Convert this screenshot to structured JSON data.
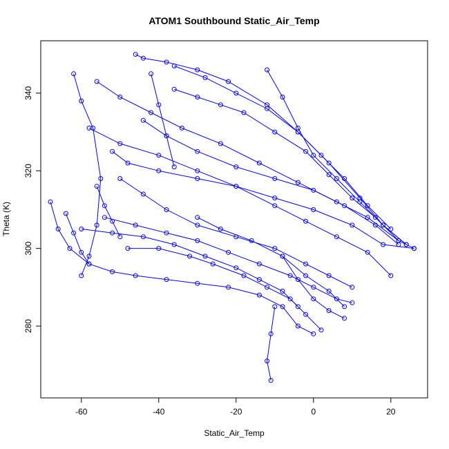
{
  "chart_data": {
    "type": "line",
    "title": "ATOM1 Southbound Static_Air_Temp",
    "xlabel": "Static_Air_Temp",
    "ylabel": "Theta (K)",
    "xlim": [
      -70.5,
      29.5
    ],
    "ylim": [
      261.5,
      353.5
    ],
    "x_ticks": [
      -60,
      -40,
      -20,
      0,
      20
    ],
    "y_ticks": [
      280,
      300,
      320,
      340
    ],
    "grid": false,
    "legend": "none",
    "color": "#0000ff",
    "markers": "open-circle",
    "series": [
      {
        "points": [
          [
            -46,
            350
          ],
          [
            -44,
            349
          ],
          [
            -38,
            348
          ],
          [
            -30,
            346
          ],
          [
            -22,
            343
          ],
          [
            -12,
            337
          ],
          [
            -4,
            330
          ],
          [
            4,
            322
          ],
          [
            12,
            313
          ],
          [
            18,
            306
          ],
          [
            24,
            301
          ]
        ]
      },
      {
        "points": [
          [
            -62,
            345
          ],
          [
            -60,
            338
          ],
          [
            -57,
            331
          ],
          [
            -55,
            318
          ],
          [
            -56,
            306
          ],
          [
            -58,
            298
          ],
          [
            -60,
            293
          ]
        ]
      },
      {
        "points": [
          [
            -56,
            343
          ],
          [
            -50,
            339
          ],
          [
            -42,
            335
          ],
          [
            -34,
            331
          ],
          [
            -24,
            327
          ],
          [
            -14,
            322
          ],
          [
            -4,
            317
          ],
          [
            6,
            312
          ],
          [
            14,
            308
          ],
          [
            22,
            302
          ],
          [
            26,
            300
          ]
        ]
      },
      {
        "points": [
          [
            -54,
            308
          ],
          [
            -46,
            306
          ],
          [
            -38,
            304
          ],
          [
            -30,
            302
          ],
          [
            -22,
            299
          ],
          [
            -14,
            296
          ],
          [
            -6,
            293
          ],
          [
            0,
            290
          ],
          [
            6,
            287
          ],
          [
            10,
            286
          ]
        ]
      },
      {
        "points": [
          [
            -68,
            312
          ],
          [
            -66,
            305
          ],
          [
            -63,
            300
          ],
          [
            -58,
            296
          ],
          [
            -52,
            294
          ],
          [
            -46,
            293
          ],
          [
            -38,
            292
          ],
          [
            -30,
            291
          ],
          [
            -22,
            290
          ],
          [
            -14,
            288
          ],
          [
            -8,
            285
          ],
          [
            -4,
            280
          ],
          [
            0,
            278
          ]
        ]
      },
      {
        "points": [
          [
            -10,
            285
          ],
          [
            -11,
            278
          ],
          [
            -12,
            271
          ],
          [
            -11,
            266
          ]
        ]
      },
      {
        "points": [
          [
            -52,
            325
          ],
          [
            -48,
            322
          ],
          [
            -40,
            320
          ],
          [
            -30,
            318
          ],
          [
            -20,
            316
          ],
          [
            -10,
            313
          ],
          [
            0,
            310
          ],
          [
            10,
            306
          ],
          [
            18,
            301
          ],
          [
            26,
            300
          ]
        ]
      },
      {
        "points": [
          [
            -58,
            331
          ],
          [
            -50,
            327
          ],
          [
            -40,
            324
          ],
          [
            -30,
            320
          ],
          [
            -20,
            316
          ],
          [
            -10,
            311
          ],
          [
            -2,
            307
          ],
          [
            6,
            303
          ],
          [
            14,
            299
          ],
          [
            20,
            293
          ]
        ]
      },
      {
        "points": [
          [
            -50,
            318
          ],
          [
            -44,
            314
          ],
          [
            -38,
            310
          ],
          [
            -30,
            306
          ],
          [
            -20,
            303
          ],
          [
            -10,
            300
          ],
          [
            -2,
            296
          ],
          [
            4,
            293
          ],
          [
            10,
            290
          ]
        ]
      },
      {
        "points": [
          [
            -48,
            300
          ],
          [
            -40,
            300
          ],
          [
            -32,
            298
          ],
          [
            -26,
            296
          ],
          [
            -18,
            293
          ],
          [
            -12,
            290
          ],
          [
            -6,
            287
          ],
          [
            -2,
            283
          ],
          [
            2,
            279
          ]
        ]
      },
      {
        "points": [
          [
            -36,
            341
          ],
          [
            -30,
            339
          ],
          [
            -24,
            337
          ],
          [
            -18,
            335
          ],
          [
            -10,
            330
          ],
          [
            -2,
            325
          ],
          [
            4,
            319
          ],
          [
            10,
            313
          ],
          [
            16,
            308
          ],
          [
            22,
            302
          ]
        ]
      },
      {
        "points": [
          [
            -44,
            333
          ],
          [
            -38,
            329
          ],
          [
            -30,
            325
          ],
          [
            -20,
            321
          ],
          [
            -10,
            318
          ],
          [
            0,
            315
          ],
          [
            8,
            311
          ],
          [
            16,
            306
          ],
          [
            22,
            301
          ]
        ]
      },
      {
        "points": [
          [
            -30,
            308
          ],
          [
            -24,
            305
          ],
          [
            -16,
            302
          ],
          [
            -8,
            298
          ],
          [
            -2,
            293
          ],
          [
            4,
            289
          ],
          [
            8,
            285
          ]
        ]
      },
      {
        "points": [
          [
            -60,
            305
          ],
          [
            -52,
            304
          ],
          [
            -44,
            303
          ],
          [
            -36,
            301
          ],
          [
            -28,
            298
          ],
          [
            -20,
            295
          ],
          [
            -14,
            292
          ],
          [
            -8,
            289
          ],
          [
            -4,
            285
          ]
        ]
      },
      {
        "points": [
          [
            -12,
            346
          ],
          [
            -8,
            339
          ],
          [
            -4,
            331
          ],
          [
            0,
            324
          ],
          [
            6,
            318
          ],
          [
            12,
            312
          ],
          [
            18,
            306
          ],
          [
            24,
            301
          ]
        ]
      },
      {
        "points": [
          [
            -36,
            347
          ],
          [
            -28,
            344
          ],
          [
            -20,
            340
          ],
          [
            -12,
            336
          ],
          [
            -4,
            330
          ],
          [
            2,
            324
          ],
          [
            8,
            318
          ],
          [
            14,
            311
          ],
          [
            20,
            305
          ]
        ]
      },
      {
        "points": [
          [
            -56,
            316
          ],
          [
            -54,
            311
          ],
          [
            -52,
            307
          ],
          [
            -50,
            303
          ]
        ]
      },
      {
        "points": [
          [
            -64,
            309
          ],
          [
            -62,
            304
          ],
          [
            -60,
            299
          ],
          [
            -58,
            296
          ]
        ]
      },
      {
        "points": [
          [
            -42,
            345
          ],
          [
            -40,
            337
          ],
          [
            -38,
            329
          ],
          [
            -36,
            321
          ]
        ]
      },
      {
        "points": [
          [
            -8,
            298
          ],
          [
            -4,
            292
          ],
          [
            0,
            287
          ],
          [
            4,
            284
          ],
          [
            8,
            282
          ]
        ]
      }
    ]
  }
}
